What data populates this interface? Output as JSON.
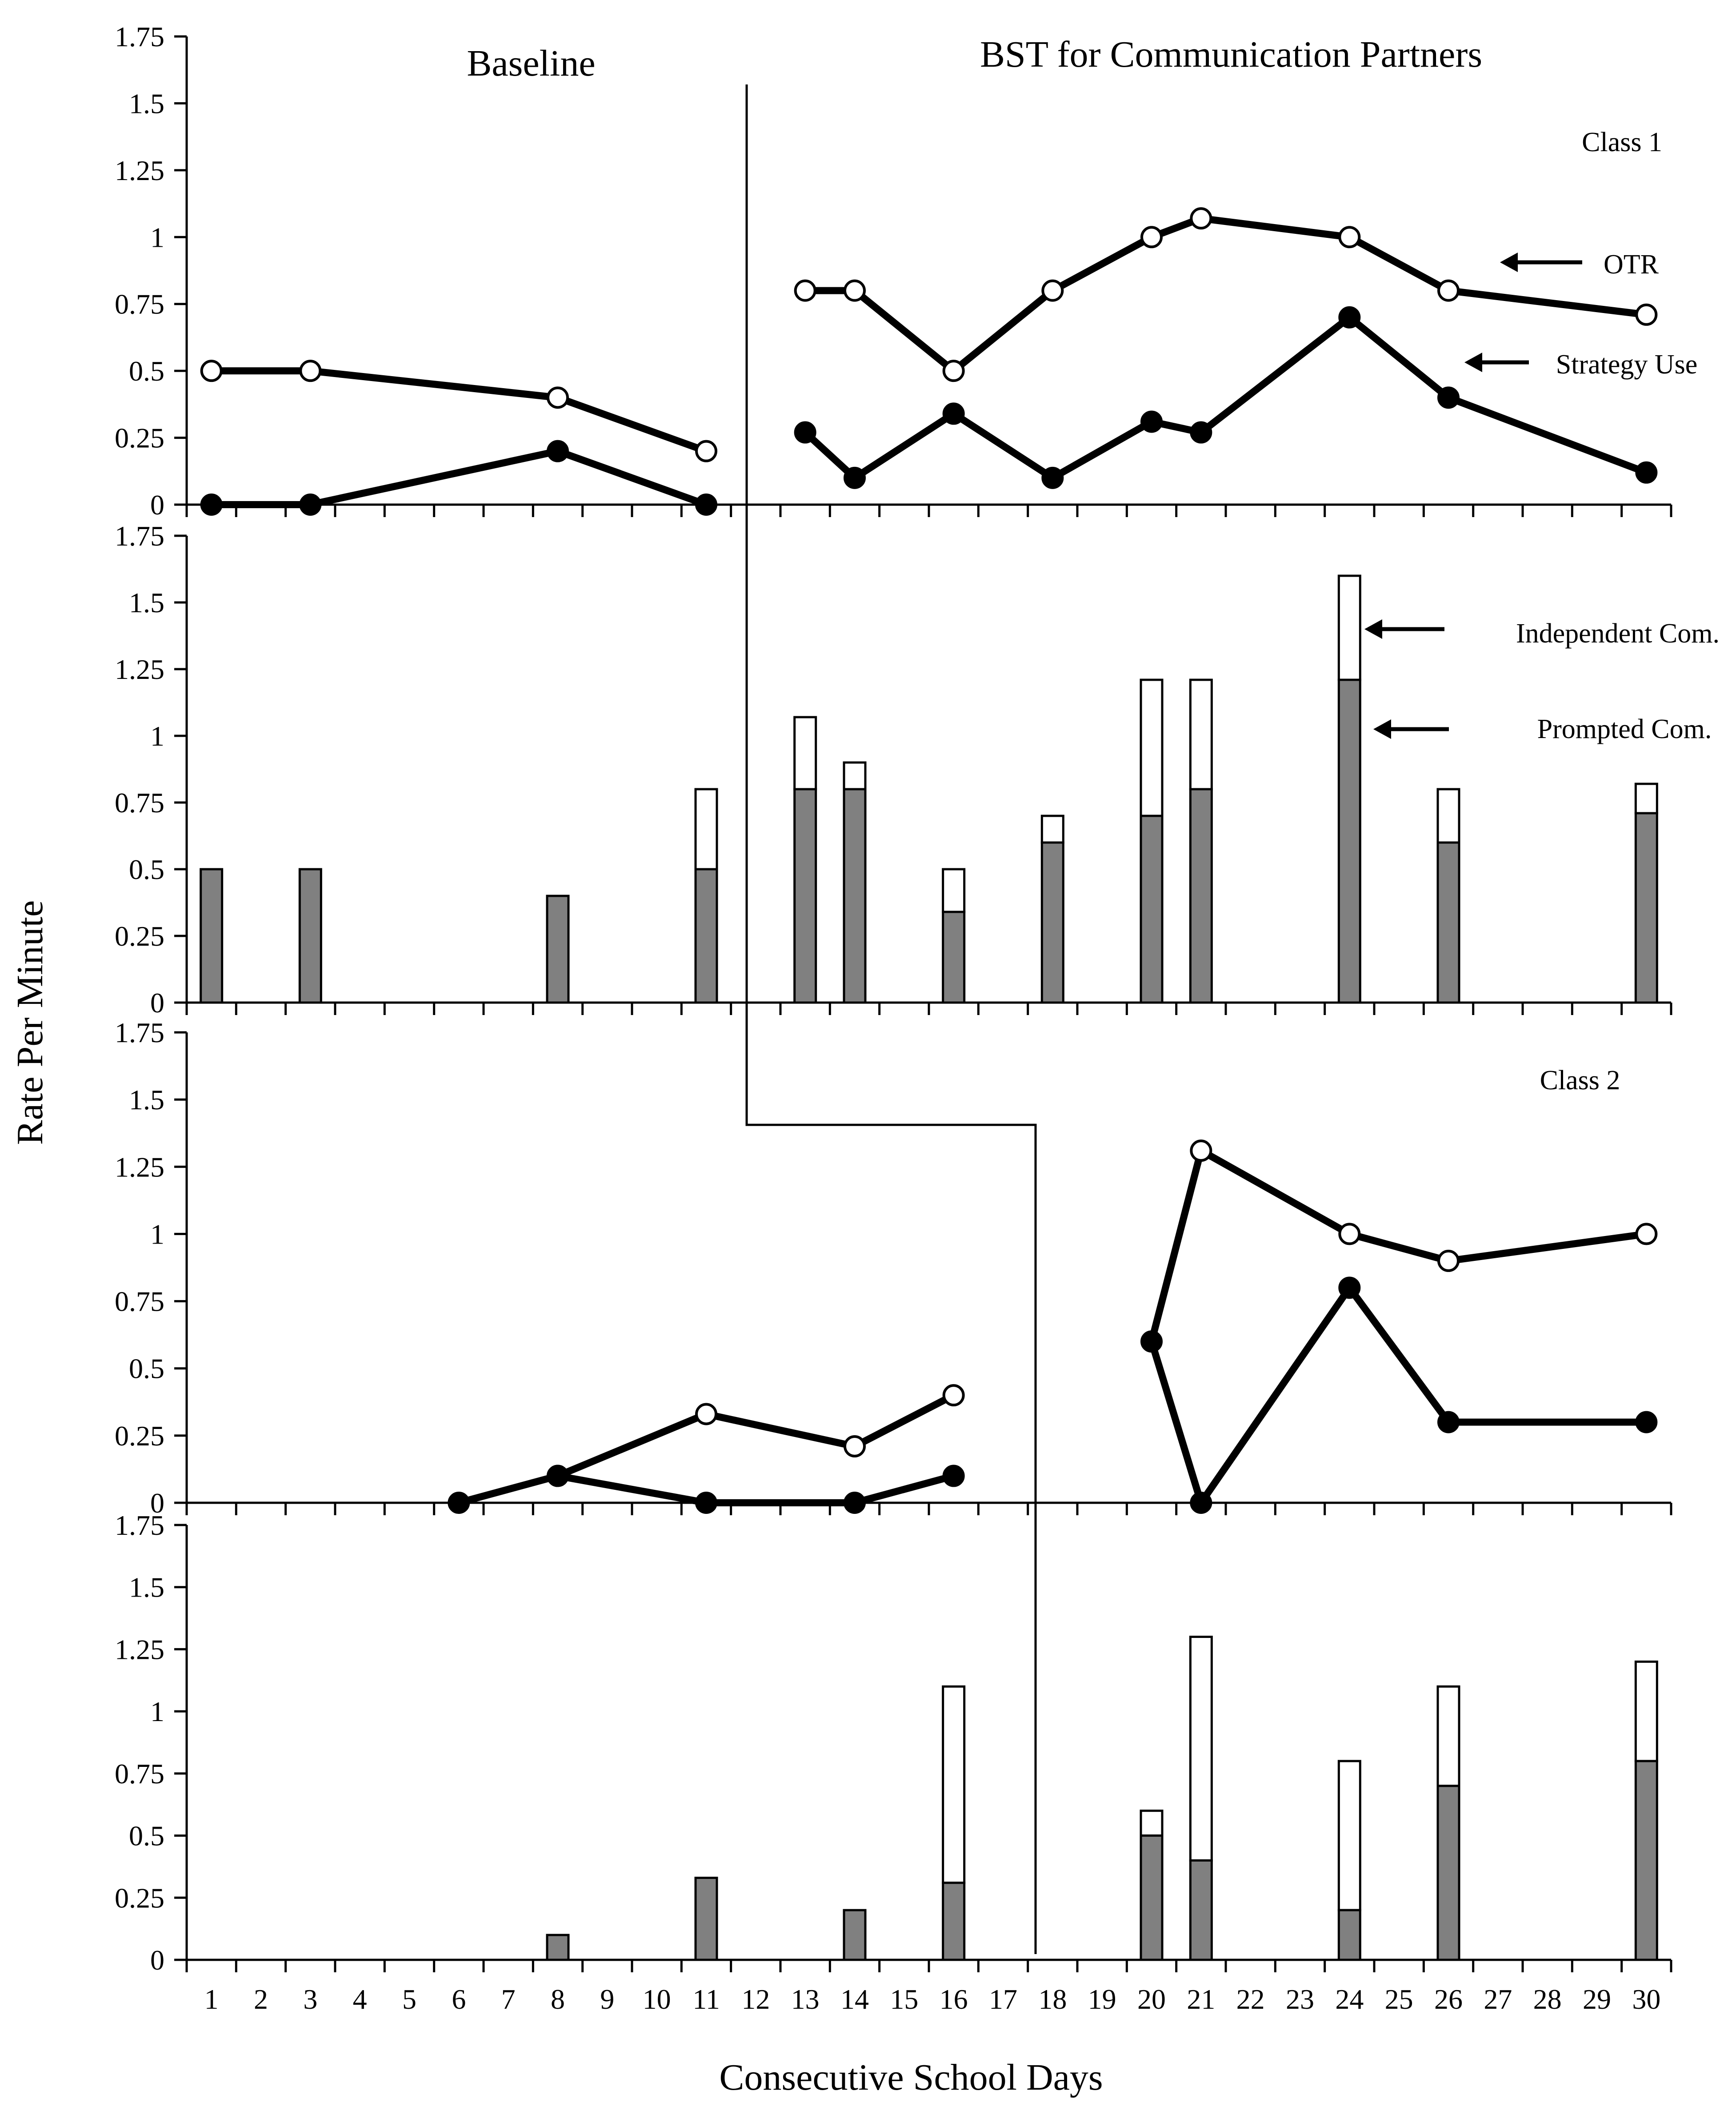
{
  "chart_data": {
    "type": "multi-panel",
    "phase_labels": [
      "Baseline",
      "BST for Communication Partners"
    ],
    "ylabel": "Rate Per Minute",
    "xlabel": "Consecutive School Days",
    "x_ticks": [
      "1",
      "2",
      "3",
      "4",
      "5",
      "6",
      "7",
      "8",
      "9",
      "10",
      "11",
      "12",
      "13",
      "14",
      "15",
      "16",
      "17",
      "18",
      "19",
      "20",
      "21",
      "22",
      "23",
      "24",
      "25",
      "26",
      "27",
      "28",
      "29",
      "30"
    ],
    "y_ticks": [
      "0",
      "0.25",
      "0.5",
      "0.75",
      "1",
      "1.25",
      "1.5",
      "1.75"
    ],
    "ylim": [
      0,
      1.75
    ],
    "xlim": [
      0.5,
      30.5
    ],
    "panels": [
      {
        "type": "line",
        "label": "Class 1",
        "phase_change_after_day": 12,
        "series": [
          {
            "name": "OTR",
            "marker": "open-circle",
            "segments": [
              [
                [
                  1,
                  0.5
                ],
                [
                  3,
                  0.5
                ],
                [
                  8,
                  0.4
                ],
                [
                  11,
                  0.2
                ]
              ],
              [
                [
                  13,
                  0.8
                ],
                [
                  14,
                  0.8
                ],
                [
                  16,
                  0.5
                ],
                [
                  18,
                  0.8
                ],
                [
                  20,
                  1.0
                ],
                [
                  21,
                  1.07
                ],
                [
                  24,
                  1.0
                ],
                [
                  26,
                  0.8
                ],
                [
                  30,
                  0.71
                ]
              ]
            ]
          },
          {
            "name": "Strategy Use",
            "marker": "filled-circle",
            "segments": [
              [
                [
                  1,
                  0
                ],
                [
                  3,
                  0
                ],
                [
                  8,
                  0.2
                ],
                [
                  11,
                  0
                ]
              ],
              [
                [
                  13,
                  0.27
                ],
                [
                  14,
                  0.1
                ],
                [
                  16,
                  0.34
                ],
                [
                  18,
                  0.1
                ],
                [
                  20,
                  0.31
                ],
                [
                  21,
                  0.27
                ],
                [
                  24,
                  0.7
                ],
                [
                  26,
                  0.4
                ],
                [
                  30,
                  0.12
                ]
              ]
            ]
          }
        ],
        "annotations": [
          {
            "text": "OTR"
          },
          {
            "text": "Strategy Use"
          }
        ]
      },
      {
        "type": "stacked-bar",
        "phase_change_after_day": 12,
        "series": [
          {
            "name": "Prompted Com.",
            "color": "#808080"
          },
          {
            "name": "Independent Com.",
            "color": "#ffffff"
          }
        ],
        "bars": [
          {
            "x": 1,
            "prompted": 0.5,
            "total": 0.5
          },
          {
            "x": 3,
            "prompted": 0.5,
            "total": 0.5
          },
          {
            "x": 8,
            "prompted": 0.4,
            "total": 0.4
          },
          {
            "x": 11,
            "prompted": 0.5,
            "total": 0.8
          },
          {
            "x": 13,
            "prompted": 0.8,
            "total": 1.07
          },
          {
            "x": 14,
            "prompted": 0.8,
            "total": 0.9
          },
          {
            "x": 16,
            "prompted": 0.34,
            "total": 0.5
          },
          {
            "x": 18,
            "prompted": 0.6,
            "total": 0.7
          },
          {
            "x": 20,
            "prompted": 0.7,
            "total": 1.21
          },
          {
            "x": 21,
            "prompted": 0.8,
            "total": 1.21
          },
          {
            "x": 24,
            "prompted": 1.21,
            "total": 1.6
          },
          {
            "x": 26,
            "prompted": 0.6,
            "total": 0.8
          },
          {
            "x": 30,
            "prompted": 0.71,
            "total": 0.82
          }
        ],
        "annotations": [
          {
            "text": "Independent Com."
          },
          {
            "text": "Prompted Com."
          }
        ]
      },
      {
        "type": "line",
        "label": "Class 2",
        "phase_change_after_day": 18,
        "series": [
          {
            "name": "OTR",
            "marker": "open-circle",
            "segments": [
              [
                [
                  8,
                  0.1
                ],
                [
                  11,
                  0.33
                ],
                [
                  14,
                  0.21
                ],
                [
                  16,
                  0.4
                ]
              ],
              [
                [
                  21,
                  1.31
                ],
                [
                  24,
                  1.0
                ],
                [
                  26,
                  0.9
                ],
                [
                  30,
                  1.0
                ]
              ]
            ]
          },
          {
            "name": "Strategy Use",
            "marker": "filled-circle",
            "segments": [
              [
                [
                  6,
                  0
                ],
                [
                  8,
                  0.1
                ],
                [
                  11,
                  0
                ],
                [
                  14,
                  0
                ],
                [
                  16,
                  0.1
                ]
              ],
              [
                [
                  20,
                  0.6
                ],
                [
                  21,
                  0
                ],
                [
                  24,
                  0.8
                ],
                [
                  26,
                  0.3
                ],
                [
                  30,
                  0.3
                ]
              ]
            ]
          }
        ],
        "extra_lines": [
          [
            [
              20,
              0.6
            ],
            [
              21,
              1.31
            ]
          ]
        ]
      },
      {
        "type": "stacked-bar",
        "phase_change_after_day": 18,
        "series": [
          {
            "name": "Prompted Com.",
            "color": "#808080"
          },
          {
            "name": "Independent Com.",
            "color": "#ffffff"
          }
        ],
        "bars": [
          {
            "x": 8,
            "prompted": 0.1,
            "total": 0.1
          },
          {
            "x": 11,
            "prompted": 0.33,
            "total": 0.33
          },
          {
            "x": 14,
            "prompted": 0.2,
            "total": 0.2
          },
          {
            "x": 16,
            "prompted": 0.31,
            "total": 1.1
          },
          {
            "x": 20,
            "prompted": 0.5,
            "total": 0.6
          },
          {
            "x": 21,
            "prompted": 0.4,
            "total": 1.3
          },
          {
            "x": 24,
            "prompted": 0.2,
            "total": 0.8
          },
          {
            "x": 26,
            "prompted": 0.7,
            "total": 1.1
          },
          {
            "x": 30,
            "prompted": 0.8,
            "total": 1.2
          }
        ]
      }
    ]
  }
}
